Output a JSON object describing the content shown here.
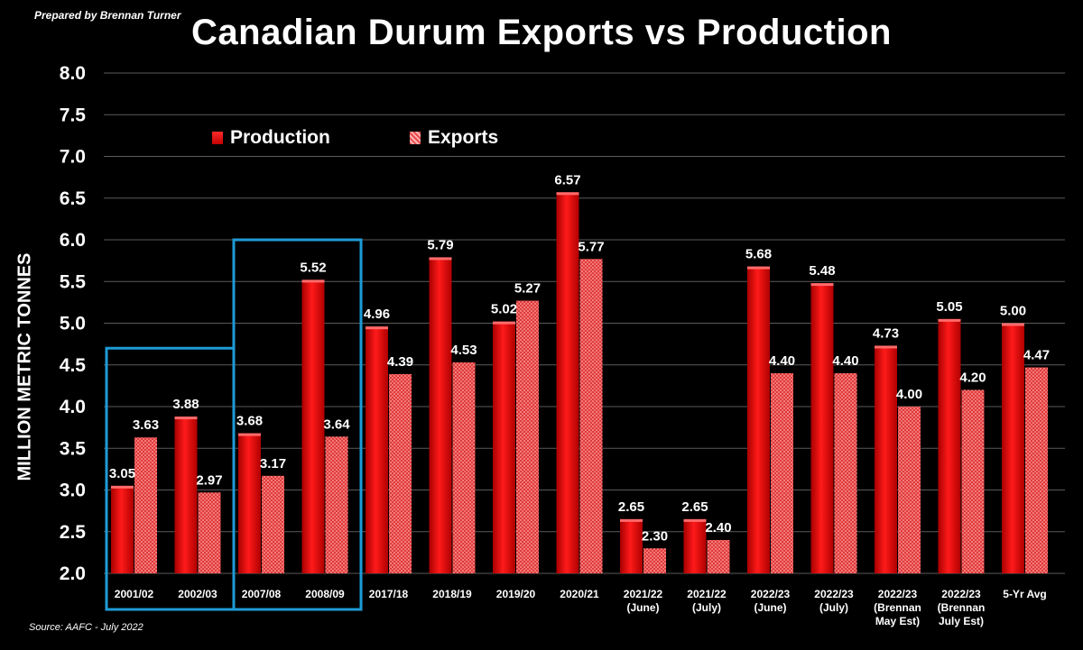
{
  "header": {
    "prepared_by": "Prepared by Brennan Turner",
    "source": "Source: AAFC - July 2022"
  },
  "chart_data": {
    "type": "bar",
    "title": "Canadian Durum Exports vs Production",
    "ylabel": "MILLION METRIC TONNES",
    "ylim": [
      2.0,
      8.0
    ],
    "yticks": [
      "2.0",
      "2.5",
      "3.0",
      "3.5",
      "4.0",
      "4.5",
      "5.0",
      "5.5",
      "6.0",
      "6.5",
      "7.0",
      "7.5",
      "8.0"
    ],
    "grid": true,
    "legend_position": "top-left",
    "categories": [
      [
        "2001/02"
      ],
      [
        "2002/03"
      ],
      [
        "2007/08"
      ],
      [
        "2008/09"
      ],
      [
        "2017/18"
      ],
      [
        "2018/19"
      ],
      [
        "2019/20"
      ],
      [
        "2020/21"
      ],
      [
        "2021/22",
        "(June)"
      ],
      [
        "2021/22",
        "(July)"
      ],
      [
        "2022/23",
        "(June)"
      ],
      [
        "2022/23",
        "(July)"
      ],
      [
        "2022/23",
        "(Brennan",
        "May Est)"
      ],
      [
        "2022/23",
        "(Brennan",
        "July Est)"
      ],
      [
        "5-Yr Avg"
      ]
    ],
    "series": [
      {
        "name": "Production",
        "color": "#e00000",
        "values": [
          3.05,
          3.88,
          3.68,
          5.52,
          4.96,
          5.79,
          5.02,
          6.57,
          2.65,
          2.65,
          5.68,
          5.48,
          4.73,
          5.05,
          5.0
        ],
        "labels": [
          "3.05",
          "3.88",
          "3.68",
          "5.52",
          "4.96",
          "5.79",
          "5.02",
          "6.57",
          "2.65",
          "2.65",
          "5.68",
          "5.48",
          "4.73",
          "5.05",
          "5.00"
        ]
      },
      {
        "name": "Exports",
        "color": "#e84a4a",
        "values": [
          3.63,
          2.97,
          3.17,
          3.64,
          4.39,
          4.53,
          5.27,
          5.77,
          2.3,
          2.4,
          4.4,
          4.4,
          4.0,
          4.2,
          4.47
        ],
        "labels": [
          "3.63",
          "2.97",
          "3.17",
          "3.64",
          "4.39",
          "4.53",
          "5.27",
          "5.77",
          "2.30",
          "2.40",
          "4.40",
          "4.40",
          "4.00",
          "4.20",
          "4.47"
        ]
      }
    ],
    "highlight_boxes": [
      {
        "categories": [
          "2001/02",
          "2002/03"
        ],
        "top_value": 4.7,
        "color": "#1e9bd7"
      },
      {
        "categories": [
          "2007/08",
          "2008/09"
        ],
        "top_value": 6.0,
        "color": "#1e9bd7"
      }
    ]
  }
}
